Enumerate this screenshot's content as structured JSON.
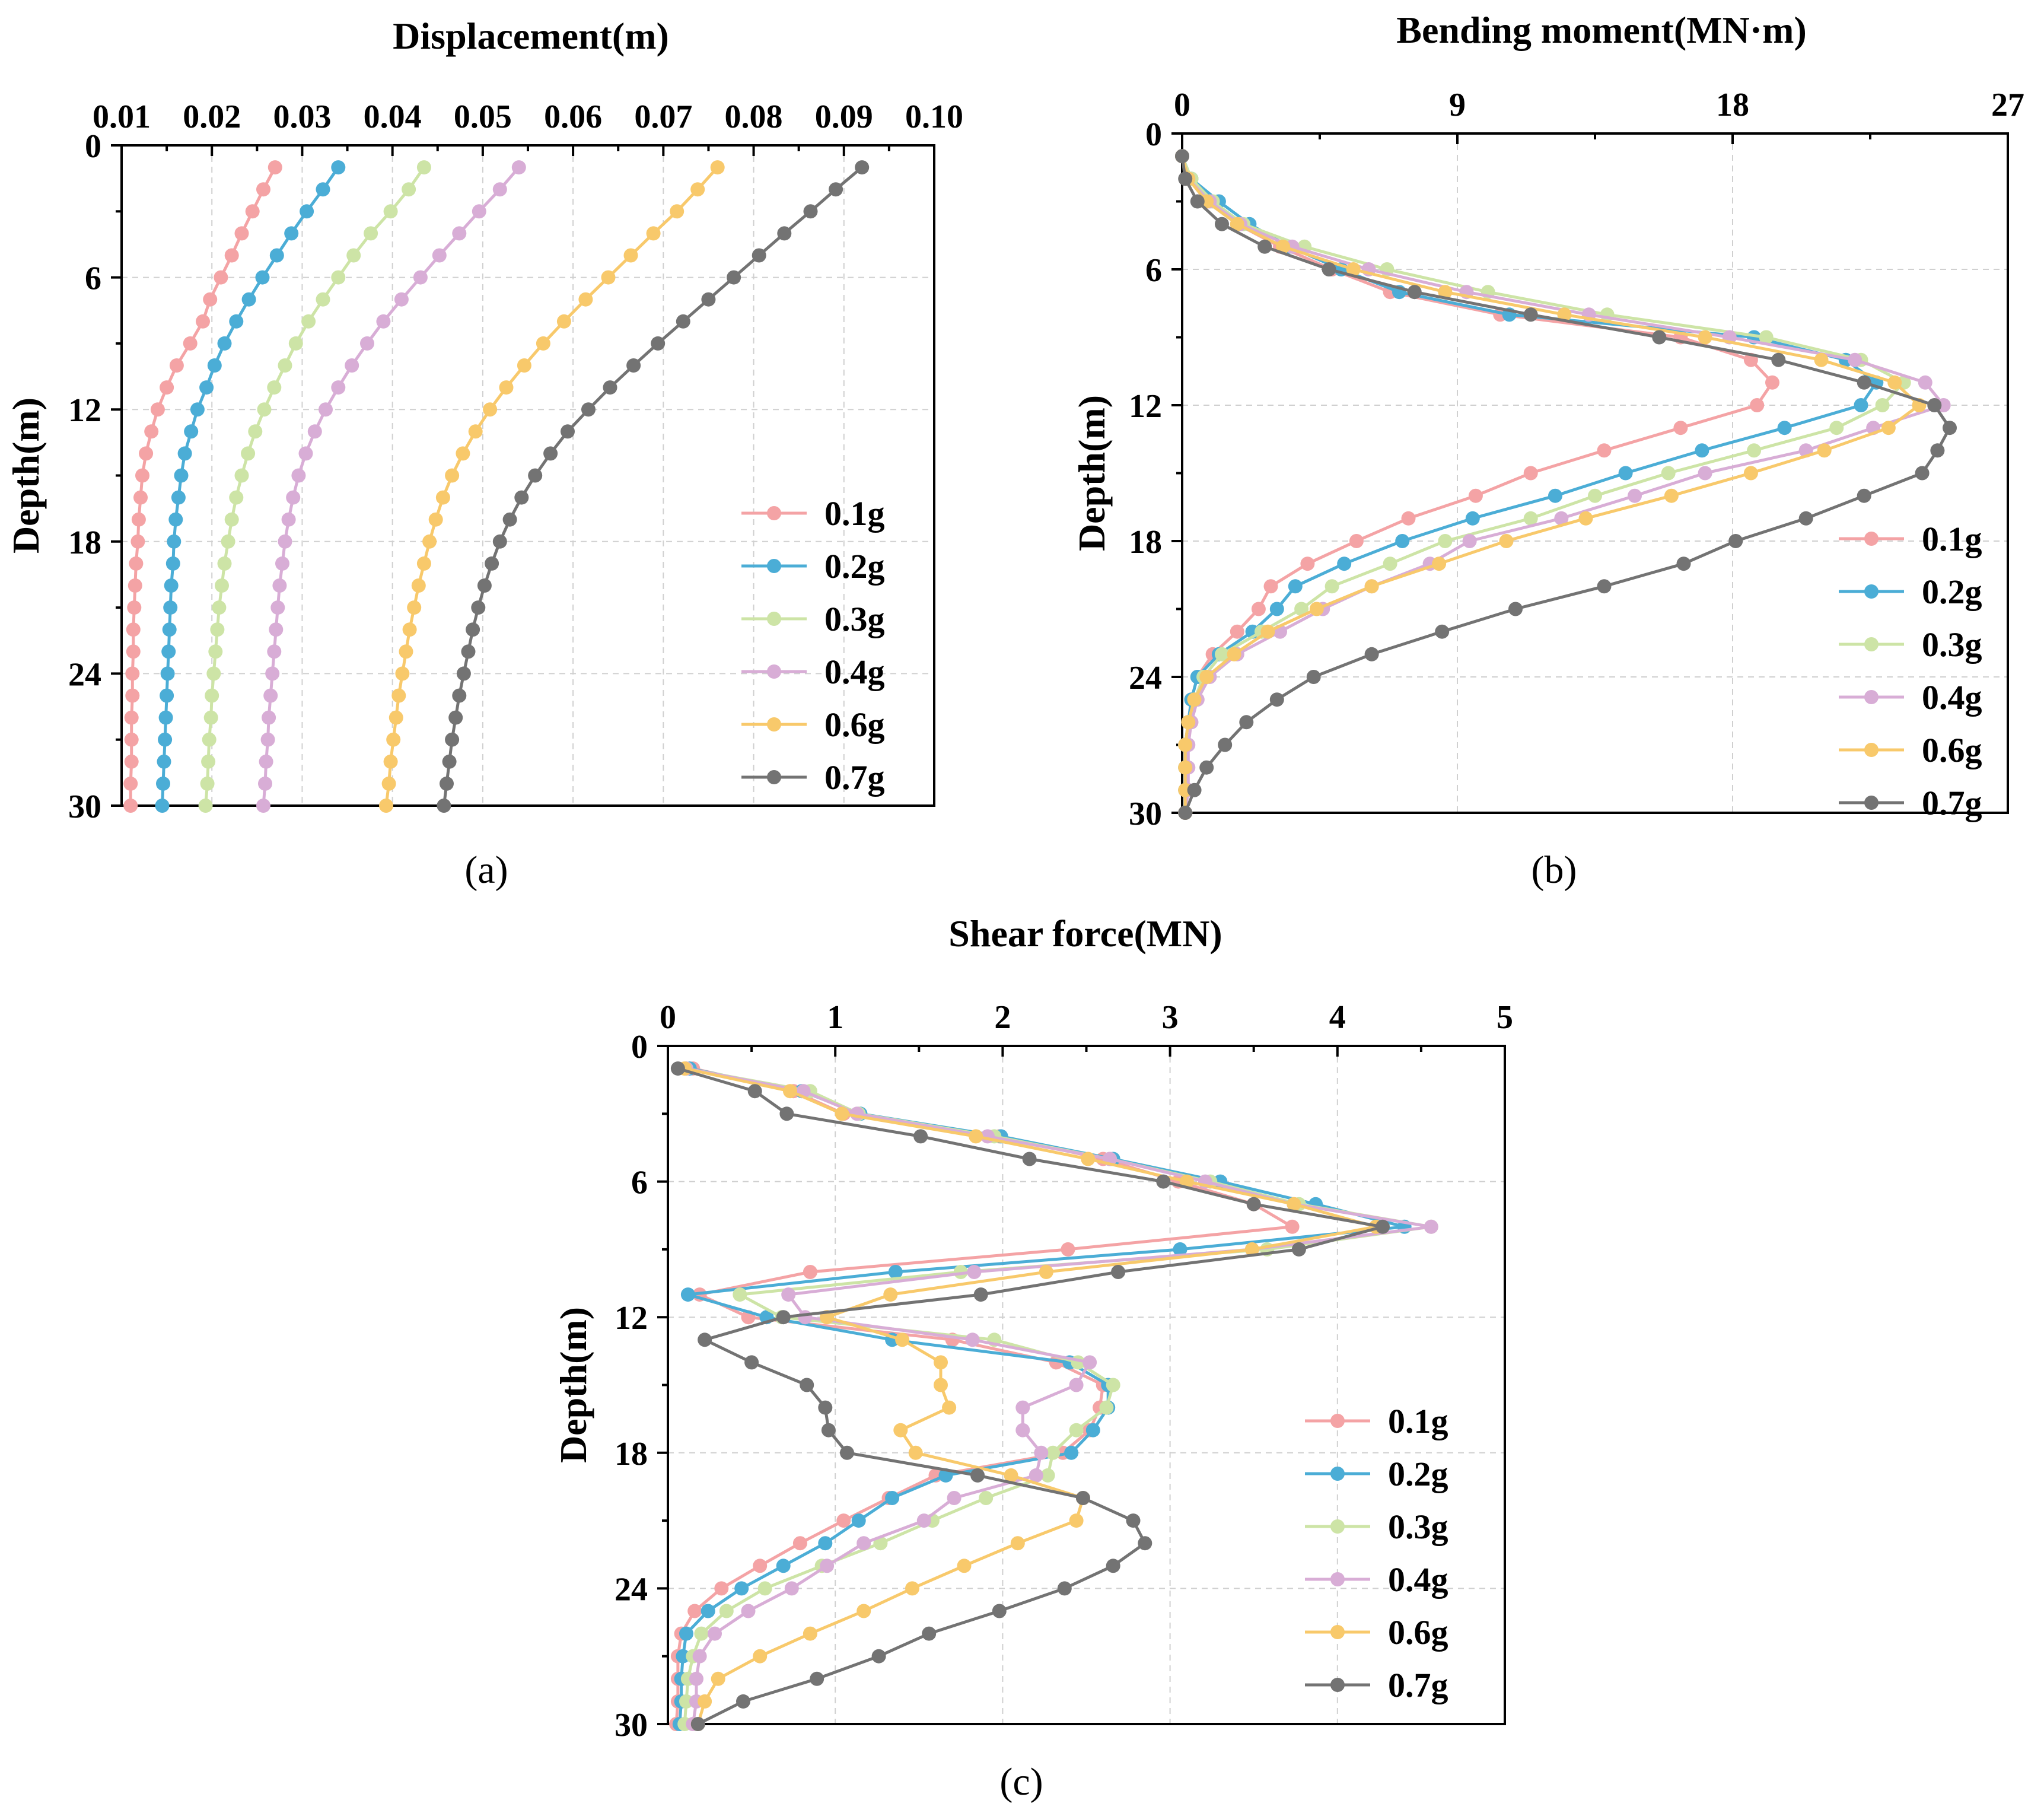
{
  "colors": {
    "0.1g": "#f4a3a5",
    "0.2g": "#4badd6",
    "0.3g": "#cde4a6",
    "0.4g": "#d8add6",
    "0.6g": "#f8c96b",
    "0.7g": "#737373"
  },
  "chart_data": [
    {
      "type": "line",
      "panel_label": "(a)",
      "title": "",
      "xlabel": "Displacement(m)",
      "ylabel": "Depth(m)",
      "xlim": [
        0.01,
        0.1
      ],
      "ylim": [
        0,
        30
      ],
      "xticks": [
        0.01,
        0.02,
        0.03,
        0.04,
        0.05,
        0.06,
        0.07,
        0.08,
        0.09,
        0.1
      ],
      "xticklabels": [
        "0.01",
        "0.02",
        "0.03",
        "0.04",
        "0.05",
        "0.06",
        "0.07",
        "0.08",
        "0.09",
        "0.10"
      ],
      "yticks": [
        0,
        6,
        12,
        18,
        24,
        30
      ],
      "yticklabels": [
        "0",
        "6",
        "12",
        "18",
        "24",
        "30"
      ],
      "x_axis_position": "top",
      "y_inverted": true,
      "grid": true,
      "legend_position": "bottom-right",
      "depth": [
        1,
        2,
        3,
        4,
        5,
        6,
        7,
        8,
        9,
        10,
        11,
        12,
        13,
        14,
        15,
        16,
        17,
        18,
        19,
        20,
        21,
        22,
        23,
        24,
        25,
        26,
        27,
        28,
        29,
        30
      ],
      "series": [
        {
          "name": "0.1g",
          "values": [
            0.027,
            0.0257,
            0.0245,
            0.0233,
            0.0222,
            0.021,
            0.0198,
            0.019,
            0.0176,
            0.0161,
            0.015,
            0.014,
            0.0133,
            0.0127,
            0.0123,
            0.0121,
            0.0119,
            0.0118,
            0.0116,
            0.0115,
            0.0114,
            0.0113,
            0.0113,
            0.0112,
            0.0112,
            0.0111,
            0.0111,
            0.0111,
            0.011,
            0.011
          ]
        },
        {
          "name": "0.2g",
          "values": [
            0.034,
            0.0323,
            0.0305,
            0.0288,
            0.0272,
            0.0256,
            0.0241,
            0.0227,
            0.0214,
            0.0203,
            0.0194,
            0.0184,
            0.0177,
            0.017,
            0.0166,
            0.0163,
            0.016,
            0.0158,
            0.0157,
            0.0155,
            0.0154,
            0.0153,
            0.0152,
            0.0151,
            0.015,
            0.0149,
            0.0148,
            0.0147,
            0.0146,
            0.0145
          ]
        },
        {
          "name": "0.3g",
          "values": [
            0.0435,
            0.0418,
            0.0398,
            0.0376,
            0.0357,
            0.034,
            0.0323,
            0.0307,
            0.0293,
            0.0281,
            0.0269,
            0.0258,
            0.0248,
            0.024,
            0.0233,
            0.0227,
            0.0222,
            0.0218,
            0.0214,
            0.0211,
            0.0208,
            0.0206,
            0.0204,
            0.0202,
            0.02,
            0.0199,
            0.0197,
            0.0196,
            0.0195,
            0.0193
          ]
        },
        {
          "name": "0.4g",
          "values": [
            0.054,
            0.0519,
            0.0496,
            0.0474,
            0.0452,
            0.0431,
            0.041,
            0.039,
            0.0372,
            0.0355,
            0.034,
            0.0326,
            0.0314,
            0.0304,
            0.0296,
            0.029,
            0.0285,
            0.0281,
            0.0278,
            0.0275,
            0.0273,
            0.0271,
            0.0269,
            0.0267,
            0.0265,
            0.0263,
            0.0262,
            0.026,
            0.0259,
            0.0257
          ]
        },
        {
          "name": "0.6g",
          "values": [
            0.076,
            0.0738,
            0.0715,
            0.0689,
            0.0664,
            0.0639,
            0.0614,
            0.059,
            0.0567,
            0.0546,
            0.0526,
            0.0508,
            0.0492,
            0.0478,
            0.0466,
            0.0456,
            0.0448,
            0.0441,
            0.0435,
            0.0429,
            0.0424,
            0.0419,
            0.0415,
            0.0411,
            0.0407,
            0.0404,
            0.0401,
            0.0398,
            0.0396,
            0.0393
          ]
        },
        {
          "name": "0.7g",
          "values": [
            0.092,
            0.0891,
            0.0863,
            0.0834,
            0.0806,
            0.0778,
            0.075,
            0.0722,
            0.0694,
            0.0667,
            0.0641,
            0.0617,
            0.0594,
            0.0575,
            0.0558,
            0.0543,
            0.053,
            0.0519,
            0.051,
            0.0502,
            0.0495,
            0.0489,
            0.0484,
            0.0479,
            0.0474,
            0.047,
            0.0466,
            0.0463,
            0.046,
            0.0457
          ]
        }
      ]
    },
    {
      "type": "line",
      "panel_label": "(b)",
      "title": "",
      "xlabel": "Bending moment(MN·m)",
      "ylabel": "Depth(m)",
      "xlim": [
        0,
        27
      ],
      "ylim": [
        0,
        30
      ],
      "xticks": [
        0,
        9,
        18,
        27
      ],
      "xticklabels": [
        "0",
        "9",
        "18",
        "27"
      ],
      "yticks": [
        0,
        6,
        12,
        18,
        24,
        30
      ],
      "yticklabels": [
        "0",
        "6",
        "12",
        "18",
        "24",
        "30"
      ],
      "x_axis_position": "top",
      "y_inverted": true,
      "grid": true,
      "legend_position": "bottom-right",
      "depth": [
        1,
        2,
        3,
        4,
        5,
        6,
        7,
        8,
        9,
        10,
        11,
        12,
        13,
        14,
        15,
        16,
        17,
        18,
        19,
        20,
        21,
        22,
        23,
        24,
        25,
        26,
        27,
        28,
        29,
        30
      ],
      "series": [
        {
          "name": "0.1g",
          "values": [
            0.0,
            0.2,
            0.8,
            1.8,
            3.2,
            4.9,
            6.8,
            10.4,
            16.3,
            18.6,
            19.3,
            18.8,
            16.3,
            13.8,
            11.4,
            9.6,
            7.4,
            5.7,
            4.1,
            2.9,
            2.5,
            1.8,
            1.0,
            0.5,
            0.3,
            0.2,
            0.1,
            0.1,
            0.1,
            0.1
          ]
        },
        {
          "name": "0.2g",
          "values": [
            0.0,
            0.3,
            1.2,
            2.2,
            3.5,
            5.2,
            7.1,
            10.7,
            18.7,
            21.7,
            22.7,
            22.2,
            19.7,
            17.0,
            14.5,
            12.2,
            9.5,
            7.2,
            5.3,
            3.7,
            3.1,
            2.3,
            1.2,
            0.5,
            0.3,
            0.2,
            0.1,
            0.1,
            0.1,
            0.1
          ]
        },
        {
          "name": "0.3g",
          "values": [
            0.0,
            0.3,
            1.0,
            2.0,
            4.0,
            6.7,
            10.0,
            13.9,
            19.1,
            22.2,
            23.6,
            22.9,
            21.4,
            18.7,
            15.9,
            13.5,
            11.4,
            8.6,
            6.8,
            4.9,
            3.9,
            2.6,
            1.3,
            0.7,
            0.4,
            0.2,
            0.1,
            0.1,
            0.1,
            0.1
          ]
        },
        {
          "name": "0.4g",
          "values": [
            0.0,
            0.2,
            0.9,
            1.9,
            3.6,
            6.1,
            9.3,
            13.3,
            17.9,
            22.0,
            24.3,
            24.9,
            22.6,
            20.4,
            17.1,
            14.8,
            12.4,
            9.4,
            8.1,
            6.2,
            4.6,
            3.2,
            1.8,
            0.9,
            0.5,
            0.3,
            0.2,
            0.2,
            0.2,
            0.1
          ]
        },
        {
          "name": "0.6g",
          "values": [
            0.0,
            0.2,
            0.8,
            1.8,
            3.3,
            5.6,
            8.6,
            12.5,
            17.1,
            20.9,
            23.3,
            24.1,
            23.1,
            21.0,
            18.6,
            16.0,
            13.2,
            10.6,
            8.4,
            6.2,
            4.4,
            2.8,
            1.7,
            0.8,
            0.4,
            0.2,
            0.1,
            0.1,
            0.1,
            0.1
          ]
        },
        {
          "name": "0.7g",
          "values": [
            0.0,
            0.1,
            0.5,
            1.3,
            2.7,
            4.8,
            7.6,
            11.4,
            15.6,
            19.5,
            22.3,
            24.6,
            25.1,
            24.7,
            24.2,
            22.3,
            20.4,
            18.1,
            16.4,
            13.8,
            10.9,
            8.5,
            6.2,
            4.3,
            3.1,
            2.1,
            1.4,
            0.8,
            0.4,
            0.1
          ]
        }
      ]
    },
    {
      "type": "line",
      "panel_label": "(c)",
      "title": "",
      "xlabel": "Shear force(MN)",
      "ylabel": "Depth(m)",
      "xlim": [
        0,
        5
      ],
      "ylim": [
        0,
        30
      ],
      "xticks": [
        0,
        1,
        2,
        3,
        4,
        5
      ],
      "xticklabels": [
        "0",
        "1",
        "2",
        "3",
        "4",
        "5"
      ],
      "yticks": [
        0,
        6,
        12,
        18,
        24,
        30
      ],
      "yticklabels": [
        "0",
        "6",
        "12",
        "18",
        "24",
        "30"
      ],
      "x_axis_position": "top",
      "y_inverted": true,
      "grid": true,
      "legend_position": "bottom-right",
      "depth": [
        1,
        2,
        3,
        4,
        5,
        6,
        7,
        8,
        9,
        10,
        11,
        12,
        13,
        14,
        15,
        16,
        17,
        18,
        19,
        20,
        21,
        22,
        23,
        24,
        25,
        26,
        27,
        28,
        29,
        30
      ],
      "series": [
        {
          "name": "0.1g",
          "values": [
            0.15,
            0.75,
            1.05,
            1.98,
            2.6,
            3.05,
            3.5,
            3.73,
            2.39,
            0.85,
            0.19,
            0.48,
            1.7,
            2.32,
            2.6,
            2.58,
            2.52,
            2.36,
            1.6,
            1.32,
            1.05,
            0.79,
            0.55,
            0.32,
            0.16,
            0.08,
            0.06,
            0.06,
            0.06,
            0.05
          ]
        },
        {
          "name": "0.2g",
          "values": [
            0.13,
            0.8,
            1.15,
            1.99,
            2.66,
            3.3,
            3.87,
            4.4,
            3.06,
            1.36,
            0.12,
            0.59,
            1.34,
            2.4,
            2.63,
            2.63,
            2.54,
            2.41,
            1.66,
            1.34,
            1.14,
            0.94,
            0.69,
            0.44,
            0.24,
            0.11,
            0.09,
            0.08,
            0.08,
            0.07
          ]
        },
        {
          "name": "0.3g",
          "values": [
            0.11,
            0.85,
            1.14,
            1.95,
            2.64,
            3.24,
            3.77,
            4.56,
            3.58,
            1.75,
            0.43,
            0.68,
            1.95,
            2.45,
            2.66,
            2.62,
            2.44,
            2.3,
            2.27,
            1.9,
            1.58,
            1.27,
            0.92,
            0.58,
            0.35,
            0.2,
            0.15,
            0.12,
            0.11,
            0.1
          ]
        },
        {
          "name": "0.4g",
          "values": [
            0.11,
            0.81,
            1.13,
            1.91,
            2.64,
            3.21,
            3.74,
            4.56,
            3.49,
            1.83,
            0.72,
            0.82,
            1.82,
            2.52,
            2.44,
            2.12,
            2.12,
            2.23,
            2.2,
            1.71,
            1.53,
            1.17,
            0.95,
            0.74,
            0.48,
            0.28,
            0.19,
            0.17,
            0.17,
            0.15
          ]
        },
        {
          "name": "0.6g",
          "values": [
            0.1,
            0.73,
            1.04,
            1.84,
            2.51,
            3.1,
            3.74,
            4.23,
            3.49,
            2.26,
            1.33,
            0.95,
            1.4,
            1.63,
            1.63,
            1.68,
            1.39,
            1.48,
            2.05,
            2.48,
            2.44,
            2.09,
            1.77,
            1.46,
            1.17,
            0.85,
            0.55,
            0.3,
            0.22,
            0.18
          ]
        },
        {
          "name": "0.7g",
          "values": [
            0.06,
            0.52,
            0.71,
            1.51,
            2.16,
            2.96,
            3.5,
            4.27,
            3.77,
            2.69,
            1.87,
            0.69,
            0.22,
            0.5,
            0.83,
            0.94,
            0.96,
            1.07,
            1.85,
            2.48,
            2.78,
            2.85,
            2.66,
            2.37,
            1.98,
            1.56,
            1.26,
            0.89,
            0.45,
            0.18
          ]
        }
      ]
    }
  ]
}
